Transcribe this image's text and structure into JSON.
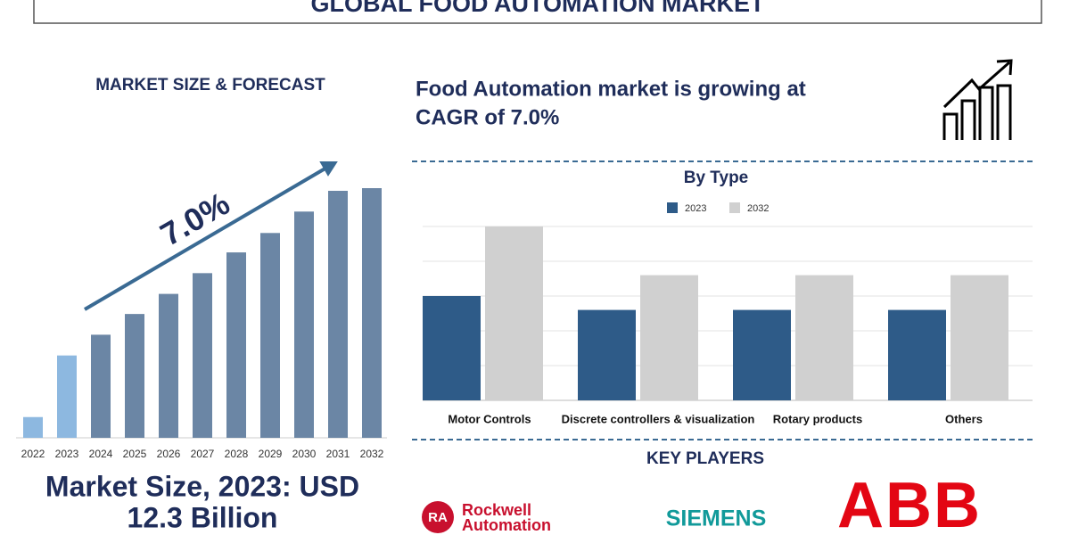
{
  "title": "GLOBAL FOOD AUTOMATION MARKET",
  "left_heading": "MARKET SIZE & FORECAST",
  "headline": [
    "Food Automation market is growing at",
    "CAGR of 7.0%"
  ],
  "market_size": [
    "Market Size, 2023: USD",
    "12.3 Billion"
  ],
  "key_players_heading": "KEY PLAYERS",
  "key_players": {
    "rockwell": {
      "mark": "RA",
      "lines": [
        "Rockwell",
        "Automation"
      ]
    },
    "siemens": "SIEMENS",
    "abb": "ABB"
  },
  "chart_data": [
    {
      "type": "bar",
      "annotation": "7.0%",
      "categories": [
        "2022",
        "2023",
        "2024",
        "2025",
        "2026",
        "2027",
        "2028",
        "2029",
        "2030",
        "2031",
        "2032"
      ],
      "values": [
        3.1,
        12.3,
        15.4,
        18.5,
        21.5,
        24.6,
        27.7,
        30.6,
        33.8,
        36.9,
        37.3
      ],
      "colors": [
        "#8db8e0",
        "#8db8e0",
        "#6b86a5",
        "#6b86a5",
        "#6b86a5",
        "#6b86a5",
        "#6b86a5",
        "#6b86a5",
        "#6b86a5",
        "#6b86a5",
        "#6b86a5"
      ]
    },
    {
      "type": "grouped-bar",
      "title": "By Type",
      "categories": [
        "Motor Controls",
        "Discrete controllers & visualization",
        "Rotary products",
        "Others"
      ],
      "series": [
        {
          "name": "2023",
          "color": "#2e5b88",
          "values": [
            3.0,
            2.6,
            2.6,
            2.6
          ]
        },
        {
          "name": "2032",
          "color": "#d0d0d0",
          "values": [
            5.0,
            3.6,
            3.6,
            3.6
          ]
        }
      ],
      "ylim": [
        0,
        5
      ],
      "yticks": [
        0,
        1,
        2,
        3,
        4,
        5
      ],
      "grid": true
    }
  ]
}
